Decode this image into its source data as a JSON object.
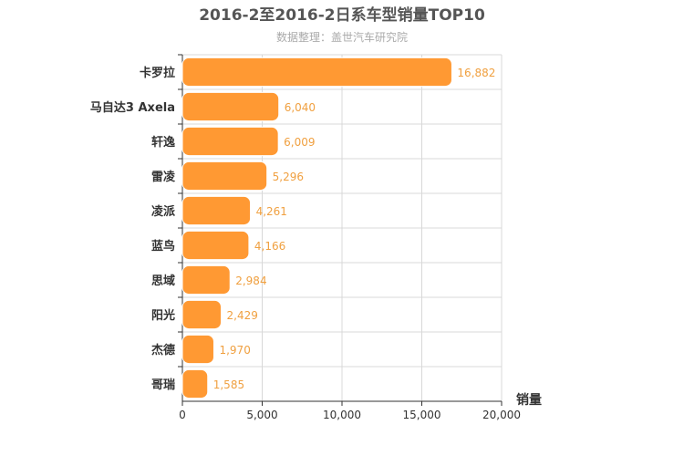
{
  "chart_data": {
    "type": "bar",
    "orientation": "horizontal",
    "title": "2016-2至2016-2日系车型销量TOP10",
    "subtitle": "数据整理：盖世汽车研究院",
    "xlabel": "销量",
    "ylabel": "",
    "categories": [
      "卡罗拉",
      "马自达3 Axela",
      "轩逸",
      "雷凌",
      "凌派",
      "蓝鸟",
      "思域",
      "阳光",
      "杰德",
      "哥瑞"
    ],
    "values": [
      16882,
      6040,
      6009,
      5296,
      4261,
      4166,
      2984,
      2429,
      1970,
      1585
    ],
    "value_labels": [
      "16,882",
      "6,040",
      "6,009",
      "5,296",
      "4,261",
      "4,166",
      "2,984",
      "2,429",
      "1,970",
      "1,585"
    ],
    "xlim": [
      0,
      20000
    ],
    "xticks": [
      0,
      5000,
      10000,
      15000,
      20000
    ],
    "xtick_labels": [
      "0",
      "5,000",
      "10,000",
      "15,000",
      "20,000"
    ],
    "grid": true,
    "legend": "none",
    "colors": {
      "bar": "#ff9933",
      "bar_stroke": "#ffffff",
      "data_label": "#f0a040",
      "grid": "#d8d8d8",
      "axis": "#333333"
    }
  }
}
